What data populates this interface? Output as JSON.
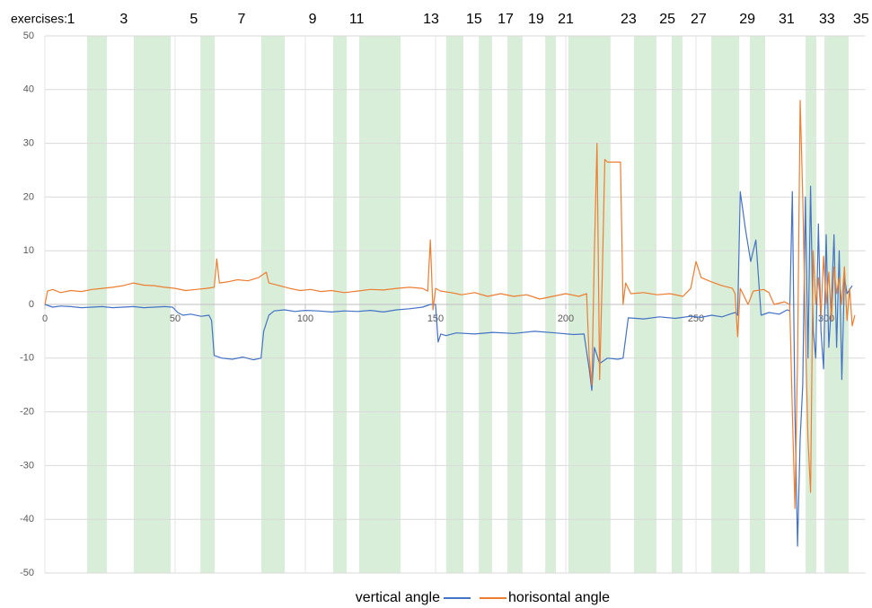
{
  "chart_data": {
    "type": "line",
    "exercise_title": "exercises:",
    "exercise_labels": {
      "values": [
        1,
        3,
        5,
        7,
        9,
        11,
        13,
        15,
        17,
        19,
        21,
        23,
        25,
        27,
        29,
        31,
        33,
        35
      ],
      "x": [
        10,
        30.3,
        57.2,
        75.5,
        102.8,
        119.7,
        148.3,
        164.8,
        176.9,
        188.6,
        200,
        224.1,
        239,
        251,
        269.7,
        284.8,
        300.3,
        313.4
      ]
    },
    "band_color": "#d9eed9",
    "bands": [
      [
        16.2,
        23.8
      ],
      [
        34.1,
        48.3
      ],
      [
        59.7,
        65.2
      ],
      [
        83.1,
        92.1
      ],
      [
        110.7,
        115.9
      ],
      [
        120.7,
        136.6
      ],
      [
        154.1,
        160.7
      ],
      [
        166.6,
        171.7
      ],
      [
        177.6,
        183.4
      ],
      [
        192.1,
        196.2
      ],
      [
        201.0,
        217.2
      ],
      [
        226.2,
        234.8
      ],
      [
        240.7,
        244.8
      ],
      [
        255.9,
        266.6
      ],
      [
        270.7,
        276.6
      ],
      [
        292.1,
        296.2
      ],
      [
        299.3,
        308.6
      ]
    ],
    "xlim": [
      0,
      315
    ],
    "ylim": [
      -50,
      50
    ],
    "xticks": [
      0,
      50,
      100,
      150,
      200,
      250,
      300
    ],
    "yticks": [
      -50,
      -40,
      -30,
      -20,
      -10,
      0,
      10,
      20,
      30,
      40,
      50
    ],
    "grid": true,
    "series": [
      {
        "name": "vertical angle",
        "color": "#4472c4",
        "x": [
          0,
          3,
          6,
          10,
          14,
          18,
          22,
          26,
          30,
          34,
          38,
          42,
          46,
          49,
          51,
          53,
          56,
          60,
          63,
          64,
          65,
          68,
          72,
          76,
          80,
          83,
          84,
          86,
          88,
          92,
          96,
          100,
          105,
          110,
          115,
          120,
          125,
          130,
          135,
          140,
          145,
          148,
          150,
          151,
          152,
          154,
          158,
          165,
          172,
          180,
          188,
          196,
          203,
          207,
          209,
          210,
          211,
          213,
          216,
          220,
          222,
          224,
          230,
          236,
          242,
          248,
          252,
          256,
          260,
          263,
          265,
          266,
          267,
          269,
          271,
          273,
          275,
          278,
          282,
          285,
          286,
          287,
          288,
          289,
          290,
          291,
          292,
          293,
          294,
          295,
          296,
          297,
          298,
          299,
          300,
          301,
          302,
          303,
          304,
          305,
          306,
          307,
          308,
          310
        ],
        "values": [
          0,
          -0.5,
          -0.3,
          -0.4,
          -0.6,
          -0.5,
          -0.4,
          -0.6,
          -0.5,
          -0.4,
          -0.6,
          -0.5,
          -0.4,
          -0.5,
          -1.5,
          -2,
          -1.8,
          -2.2,
          -2,
          -3,
          -9.5,
          -10,
          -10.2,
          -9.8,
          -10.3,
          -10,
          -5,
          -2,
          -1.2,
          -1,
          -1.3,
          -1.1,
          -1.2,
          -1.4,
          -1.2,
          -1.3,
          -1.1,
          -1.4,
          -1,
          -0.8,
          -0.5,
          0,
          0,
          -7,
          -5.5,
          -5.8,
          -5.3,
          -5.5,
          -5.2,
          -5.4,
          -5,
          -5.3,
          -5.6,
          -5.5,
          -12,
          -16,
          -8,
          -11,
          -10,
          -10.2,
          -10,
          -2.5,
          -2.7,
          -2.3,
          -2.6,
          -2.2,
          -2.4,
          -2,
          -2.3,
          -1.8,
          -1.5,
          -2,
          21,
          14,
          8,
          12,
          -2,
          -1.5,
          -1.8,
          -1,
          -1.2,
          21,
          -20,
          -45,
          -25,
          -15,
          20,
          -10,
          22,
          -5,
          -10,
          15,
          -5,
          -12,
          13,
          -8,
          0,
          13,
          -8,
          10,
          -14,
          5,
          2,
          3.5
        ]
      },
      {
        "name": "horisontal angle",
        "color": "#ed7d31",
        "x": [
          0,
          1,
          3,
          6,
          10,
          14,
          18,
          22,
          26,
          30,
          34,
          38,
          42,
          46,
          50,
          54,
          58,
          62,
          65,
          66,
          67,
          70,
          74,
          78,
          82,
          85,
          86,
          90,
          94,
          98,
          102,
          106,
          110,
          115,
          120,
          125,
          130,
          135,
          140,
          145,
          147,
          148,
          149,
          150,
          152,
          156,
          160,
          165,
          170,
          175,
          180,
          185,
          190,
          195,
          200,
          205,
          208,
          209,
          210,
          211,
          212,
          213,
          214,
          215,
          216,
          218,
          221,
          222,
          223,
          225,
          230,
          235,
          240,
          245,
          248,
          250,
          252,
          256,
          260,
          264,
          265,
          266,
          267,
          268,
          270,
          272,
          276,
          278,
          280,
          284,
          286,
          287,
          288,
          289,
          290,
          291,
          292,
          293,
          294,
          295,
          296,
          297,
          298,
          299,
          300,
          301,
          302,
          303,
          304,
          305,
          306,
          307,
          308,
          309,
          310,
          311
        ],
        "values": [
          0,
          2.5,
          2.8,
          2.2,
          2.6,
          2.4,
          2.8,
          3,
          3.2,
          3.5,
          4,
          3.6,
          3.5,
          3.2,
          3,
          2.6,
          2.8,
          3,
          3.2,
          8.5,
          4,
          4.2,
          4.6,
          4.4,
          5,
          6,
          4,
          3.5,
          3,
          2.6,
          2.8,
          2.4,
          2.6,
          2.2,
          2.5,
          2.8,
          2.7,
          3,
          3.2,
          3,
          2.5,
          12,
          -1,
          3,
          2.5,
          2.2,
          1.8,
          2.2,
          1.5,
          2,
          1.5,
          1.8,
          1,
          1.5,
          2,
          1.5,
          2,
          -10,
          -15,
          10,
          30,
          -14,
          5,
          27,
          26.5,
          26.5,
          26.5,
          0,
          4,
          2,
          2.2,
          1.8,
          2,
          1.5,
          3,
          8,
          5,
          4.2,
          3.5,
          3,
          2,
          -6,
          3,
          2,
          0,
          2.5,
          2.8,
          2.2,
          0,
          0.5,
          0,
          -20,
          -38,
          -10,
          38,
          20,
          -5,
          -25,
          -35,
          10,
          0,
          5,
          -2,
          9,
          0,
          6,
          -3,
          7,
          2,
          5,
          0,
          7,
          -3,
          3,
          -4,
          -2
        ]
      }
    ]
  }
}
